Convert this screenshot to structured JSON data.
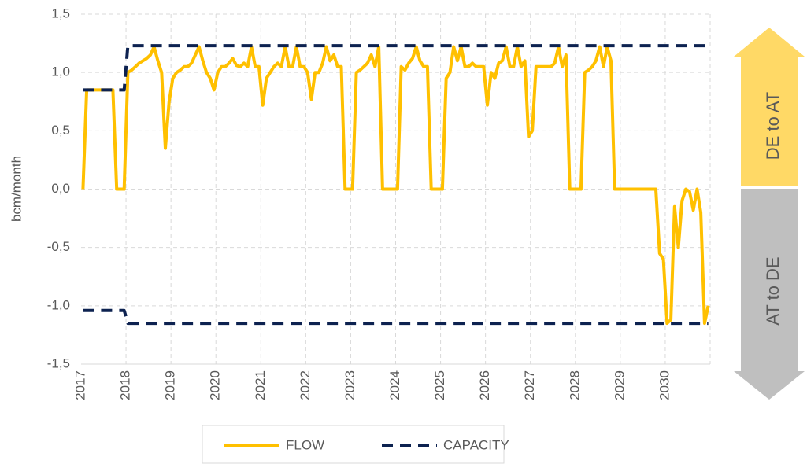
{
  "chart_data": {
    "type": "line",
    "y_label": "bcm/month",
    "categories": [
      "2017",
      null,
      null,
      null,
      null,
      null,
      null,
      null,
      null,
      null,
      null,
      null,
      "2018",
      null,
      null,
      null,
      null,
      null,
      null,
      null,
      null,
      null,
      null,
      null,
      "2019",
      null,
      null,
      null,
      null,
      null,
      null,
      null,
      null,
      null,
      null,
      null,
      "2020",
      null,
      null,
      null,
      null,
      null,
      null,
      null,
      null,
      null,
      null,
      null,
      "2021",
      null,
      null,
      null,
      null,
      null,
      null,
      null,
      null,
      null,
      null,
      null,
      "2022",
      null,
      null,
      null,
      null,
      null,
      null,
      null,
      null,
      null,
      null,
      null,
      "2023",
      null,
      null,
      null,
      null,
      null,
      null,
      null,
      null,
      null,
      null,
      null,
      "2024",
      null,
      null,
      null,
      null,
      null,
      null,
      null,
      null,
      null,
      null,
      null,
      "2025",
      null,
      null,
      null,
      null,
      null,
      null,
      null,
      null,
      null,
      null,
      null,
      "2026",
      null,
      null,
      null,
      null,
      null,
      null,
      null,
      null,
      null,
      null,
      null,
      "2027",
      null,
      null,
      null,
      null,
      null,
      null,
      null,
      null,
      null,
      null,
      null,
      "2028",
      null,
      null,
      null,
      null,
      null,
      null,
      null,
      null,
      null,
      null,
      null,
      "2029",
      null,
      null,
      null,
      null,
      null,
      null,
      null,
      null,
      null,
      null,
      null,
      "2030",
      null,
      null,
      null,
      null,
      null,
      null,
      null,
      null,
      null,
      null,
      null
    ],
    "series": [
      {
        "name": "FLOW",
        "color": "#ffc000",
        "values": [
          0,
          0.85,
          0.85,
          0.85,
          0.85,
          0.85,
          0.85,
          0.85,
          0.85,
          0,
          0,
          0,
          1.0,
          1.02,
          1.05,
          1.08,
          1.1,
          1.12,
          1.15,
          1.22,
          1.1,
          1.0,
          0.35,
          0.75,
          0.95,
          1.0,
          1.02,
          1.05,
          1.05,
          1.08,
          1.15,
          1.22,
          1.1,
          1.0,
          0.95,
          0.85,
          1.0,
          1.05,
          1.05,
          1.08,
          1.12,
          1.06,
          1.05,
          1.08,
          1.05,
          1.22,
          1.05,
          1.05,
          0.72,
          0.95,
          1.0,
          1.05,
          1.08,
          1.05,
          1.22,
          1.05,
          1.05,
          1.22,
          1.05,
          1.05,
          1.0,
          0.77,
          1.0,
          1.0,
          1.08,
          1.22,
          1.1,
          1.15,
          1.05,
          1.05,
          0,
          0,
          0,
          1.0,
          1.02,
          1.05,
          1.08,
          1.15,
          1.05,
          1.22,
          0,
          0,
          0,
          0,
          0,
          1.05,
          1.02,
          1.08,
          1.12,
          1.22,
          1.1,
          1.05,
          1.05,
          0,
          0,
          0,
          0,
          0.95,
          1.0,
          1.22,
          1.1,
          1.22,
          1.05,
          1.05,
          1.08,
          1.05,
          1.05,
          1.05,
          0.72,
          1.0,
          0.95,
          1.08,
          1.1,
          1.22,
          1.05,
          1.05,
          1.22,
          1.05,
          1.1,
          0.45,
          0.5,
          1.05,
          1.05,
          1.05,
          1.05,
          1.05,
          1.08,
          1.22,
          1.05,
          1.15,
          0,
          0,
          0,
          0,
          1.0,
          1.02,
          1.05,
          1.1,
          1.22,
          1.05,
          1.22,
          1.1,
          0,
          0,
          0,
          0,
          0,
          0,
          0,
          0,
          0,
          0,
          0,
          0,
          -0.55,
          -0.6,
          -1.15,
          -1.12,
          -0.15,
          -0.5,
          -0.1,
          0,
          -0.02,
          -0.18,
          0,
          -0.2,
          -1.15,
          -1.0
        ]
      },
      {
        "name": "CAPACITY",
        "color": "#0d2250",
        "dashed": true,
        "values": [
          0.85,
          0.85,
          0.85,
          0.85,
          0.85,
          0.85,
          0.85,
          0.85,
          0.85,
          0.85,
          0.85,
          0.85,
          1.23,
          1.23,
          1.23,
          1.23,
          1.23,
          1.23,
          1.23,
          1.23,
          1.23,
          1.23,
          1.23,
          1.23,
          1.23,
          1.23,
          1.23,
          1.23,
          1.23,
          1.23,
          1.23,
          1.23,
          1.23,
          1.23,
          1.23,
          1.23,
          1.23,
          1.23,
          1.23,
          1.23,
          1.23,
          1.23,
          1.23,
          1.23,
          1.23,
          1.23,
          1.23,
          1.23,
          1.23,
          1.23,
          1.23,
          1.23,
          1.23,
          1.23,
          1.23,
          1.23,
          1.23,
          1.23,
          1.23,
          1.23,
          1.23,
          1.23,
          1.23,
          1.23,
          1.23,
          1.23,
          1.23,
          1.23,
          1.23,
          1.23,
          1.23,
          1.23,
          1.23,
          1.23,
          1.23,
          1.23,
          1.23,
          1.23,
          1.23,
          1.23,
          1.23,
          1.23,
          1.23,
          1.23,
          1.23,
          1.23,
          1.23,
          1.23,
          1.23,
          1.23,
          1.23,
          1.23,
          1.23,
          1.23,
          1.23,
          1.23,
          1.23,
          1.23,
          1.23,
          1.23,
          1.23,
          1.23,
          1.23,
          1.23,
          1.23,
          1.23,
          1.23,
          1.23,
          1.23,
          1.23,
          1.23,
          1.23,
          1.23,
          1.23,
          1.23,
          1.23,
          1.23,
          1.23,
          1.23,
          1.23,
          1.23,
          1.23,
          1.23,
          1.23,
          1.23,
          1.23,
          1.23,
          1.23,
          1.23,
          1.23,
          1.23,
          1.23,
          1.23,
          1.23,
          1.23,
          1.23,
          1.23,
          1.23,
          1.23,
          1.23,
          1.23,
          1.23,
          1.23,
          1.23,
          1.23,
          1.23,
          1.23,
          1.23,
          1.23,
          1.23,
          1.23,
          1.23,
          1.23,
          1.23,
          1.23,
          1.23,
          1.23,
          1.23,
          1.23,
          1.23,
          1.23,
          1.23,
          1.23,
          1.23,
          1.23,
          1.23,
          1.23,
          1.23
        ],
        "lower": [
          -1.04,
          -1.04,
          -1.04,
          -1.04,
          -1.04,
          -1.04,
          -1.04,
          -1.04,
          -1.04,
          -1.04,
          -1.04,
          -1.04,
          -1.15,
          -1.15,
          -1.15,
          -1.15,
          -1.15,
          -1.15,
          -1.15,
          -1.15,
          -1.15,
          -1.15,
          -1.15,
          -1.15,
          -1.15,
          -1.15,
          -1.15,
          -1.15,
          -1.15,
          -1.15,
          -1.15,
          -1.15,
          -1.15,
          -1.15,
          -1.15,
          -1.15,
          -1.15,
          -1.15,
          -1.15,
          -1.15,
          -1.15,
          -1.15,
          -1.15,
          -1.15,
          -1.15,
          -1.15,
          -1.15,
          -1.15,
          -1.15,
          -1.15,
          -1.15,
          -1.15,
          -1.15,
          -1.15,
          -1.15,
          -1.15,
          -1.15,
          -1.15,
          -1.15,
          -1.15,
          -1.15,
          -1.15,
          -1.15,
          -1.15,
          -1.15,
          -1.15,
          -1.15,
          -1.15,
          -1.15,
          -1.15,
          -1.15,
          -1.15,
          -1.15,
          -1.15,
          -1.15,
          -1.15,
          -1.15,
          -1.15,
          -1.15,
          -1.15,
          -1.15,
          -1.15,
          -1.15,
          -1.15,
          -1.15,
          -1.15,
          -1.15,
          -1.15,
          -1.15,
          -1.15,
          -1.15,
          -1.15,
          -1.15,
          -1.15,
          -1.15,
          -1.15,
          -1.15,
          -1.15,
          -1.15,
          -1.15,
          -1.15,
          -1.15,
          -1.15,
          -1.15,
          -1.15,
          -1.15,
          -1.15,
          -1.15,
          -1.15,
          -1.15,
          -1.15,
          -1.15,
          -1.15,
          -1.15,
          -1.15,
          -1.15,
          -1.15,
          -1.15,
          -1.15,
          -1.15,
          -1.15,
          -1.15,
          -1.15,
          -1.15,
          -1.15,
          -1.15,
          -1.15,
          -1.15,
          -1.15,
          -1.15,
          -1.15,
          -1.15,
          -1.15,
          -1.15,
          -1.15,
          -1.15,
          -1.15,
          -1.15,
          -1.15,
          -1.15,
          -1.15,
          -1.15,
          -1.15,
          -1.15,
          -1.15,
          -1.15,
          -1.15,
          -1.15,
          -1.15,
          -1.15,
          -1.15,
          -1.15,
          -1.15,
          -1.15,
          -1.15,
          -1.15,
          -1.15,
          -1.15,
          -1.15,
          -1.15,
          -1.15,
          -1.15,
          -1.15,
          -1.15,
          -1.15,
          -1.15,
          -1.15,
          -1.15
        ]
      }
    ],
    "ylim": [
      -1.5,
      1.5
    ],
    "yticks": [
      {
        "value": -1.5,
        "label": "-1,5"
      },
      {
        "value": -1.0,
        "label": "-1,0"
      },
      {
        "value": -0.5,
        "label": "-0,5"
      },
      {
        "value": 0,
        "label": "0,0"
      },
      {
        "value": 0.5,
        "label": "0,5"
      },
      {
        "value": 1.0,
        "label": "1,0"
      },
      {
        "value": 1.5,
        "label": "1,5"
      }
    ],
    "grid": true,
    "legend": "bottom",
    "annotations": [
      {
        "text": "DE to AT",
        "color": "#ffd966"
      },
      {
        "text": "AT to DE",
        "color": "#bfbfbf"
      }
    ]
  }
}
